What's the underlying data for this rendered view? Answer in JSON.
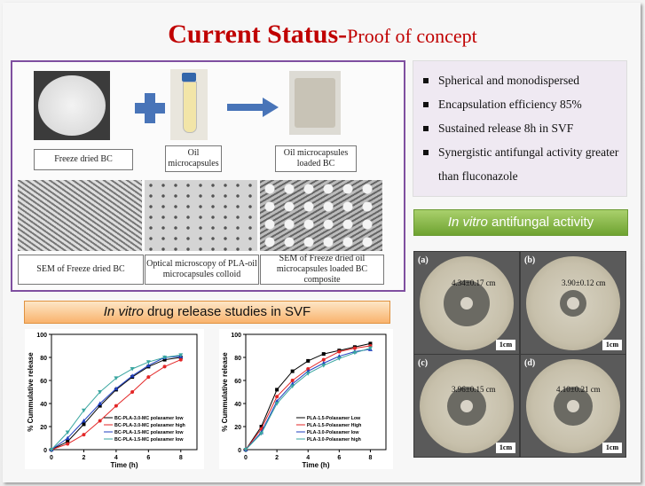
{
  "title": {
    "main": "Current Status-",
    "sub": "Proof of concept"
  },
  "process_labels": {
    "freeze_dried": "Freeze dried BC",
    "oil_micro": "Oil microcapsules",
    "loaded": "Oil microcapsules loaded BC",
    "sem1": "SEM of Freeze dried BC",
    "optical": "Optical microscopy of PLA-oil microcapsules colloid",
    "sem2": "SEM of Freeze dried oil microcapsules loaded BC composite"
  },
  "bullets": [
    "Spherical and monodispersed",
    "Encapsulation efficiency 85%",
    "Sustained release 8h in SVF",
    "Synergistic antifungal activity greater than fluconazole"
  ],
  "antifungal_banner": {
    "italic": "In vitro",
    "rest": " antifungal activity"
  },
  "release_banner": {
    "italic": "In vitro",
    "rest": " drug release studies in SVF"
  },
  "antifungal_images": [
    {
      "label": "(a)",
      "measure": "4.34±0.17 cm",
      "scale": "1cm"
    },
    {
      "label": "(b)",
      "measure": "3.90±0.12 cm",
      "scale": "1cm"
    },
    {
      "label": "(c)",
      "measure": "3.96±0.15 cm",
      "scale": "1cm"
    },
    {
      "label": "(d)",
      "measure": "4.10±0.21 cm",
      "scale": "1cm"
    }
  ],
  "chart_data": [
    {
      "type": "line",
      "xlabel": "Time (h)",
      "ylabel": "% Cummulative release",
      "xlim": [
        0,
        9
      ],
      "ylim": [
        0,
        100
      ],
      "xticks": [
        0,
        2,
        4,
        6,
        8
      ],
      "yticks": [
        0,
        20,
        40,
        60,
        80,
        100
      ],
      "legend_position": "bottom-right",
      "x": [
        0,
        1,
        2,
        3,
        4,
        5,
        6,
        7,
        8
      ],
      "series": [
        {
          "name": "BC-PLA-3.0-MC polaxamer low",
          "color": "#000000",
          "marker": "square",
          "values": [
            0,
            7,
            22,
            38,
            52,
            63,
            72,
            78,
            80
          ]
        },
        {
          "name": "BC-PLA-3.0-MC polaxamer high",
          "color": "#e32626",
          "marker": "circle",
          "values": [
            0,
            5,
            13,
            25,
            38,
            50,
            63,
            72,
            78
          ]
        },
        {
          "name": "BC-PLA-1.5-MC polaxamer low",
          "color": "#1f3fbf",
          "marker": "triangle",
          "values": [
            0,
            10,
            25,
            40,
            53,
            64,
            73,
            80,
            81
          ]
        },
        {
          "name": "BC-PLA-1.5-MC polaxamer low",
          "color": "#3aa6a0",
          "marker": "triangle-down",
          "values": [
            0,
            15,
            34,
            50,
            62,
            70,
            76,
            80,
            82
          ]
        }
      ]
    },
    {
      "type": "line",
      "xlabel": "Time (h)",
      "ylabel": "% Cummulative release",
      "xlim": [
        0,
        9
      ],
      "ylim": [
        0,
        100
      ],
      "xticks": [
        0,
        2,
        4,
        6,
        8
      ],
      "yticks": [
        0,
        20,
        40,
        60,
        80,
        100
      ],
      "legend_position": "bottom-right",
      "x": [
        0,
        1,
        2,
        3,
        4,
        5,
        6,
        7,
        8
      ],
      "series": [
        {
          "name": "PLA-1.5-Polaxamer Low",
          "color": "#000000",
          "marker": "square",
          "values": [
            0,
            20,
            52,
            68,
            77,
            83,
            86,
            89,
            92
          ]
        },
        {
          "name": "PLA-1.5-Polaxamer High",
          "color": "#e32626",
          "marker": "circle",
          "values": [
            0,
            18,
            46,
            60,
            70,
            78,
            85,
            88,
            90
          ]
        },
        {
          "name": "PLA-3.0-Polaxamer low",
          "color": "#1f3fbf",
          "marker": "triangle",
          "values": [
            0,
            15,
            42,
            57,
            68,
            75,
            81,
            85,
            87
          ]
        },
        {
          "name": "PLA-3.0-Polaxamer high",
          "color": "#3aa6a0",
          "marker": "triangle-down",
          "values": [
            0,
            14,
            40,
            55,
            66,
            73,
            79,
            84,
            88
          ]
        }
      ]
    }
  ]
}
